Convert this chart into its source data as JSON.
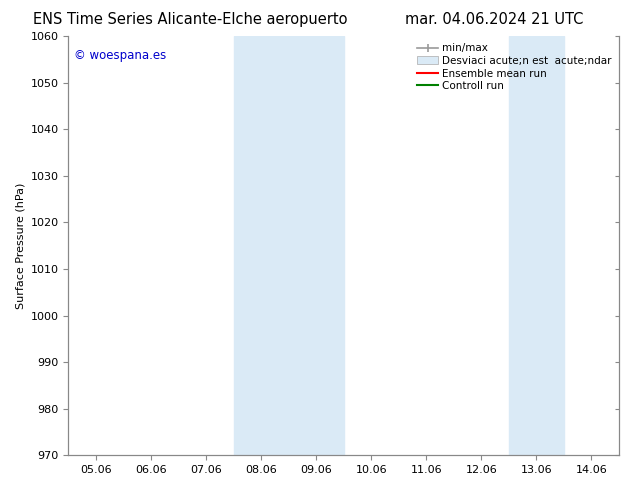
{
  "title_left": "ENS Time Series Alicante-Elche aeropuerto",
  "title_right": "mar. 04.06.2024 21 UTC",
  "ylabel": "Surface Pressure (hPa)",
  "ylim": [
    970,
    1060
  ],
  "yticks": [
    970,
    980,
    990,
    1000,
    1010,
    1020,
    1030,
    1040,
    1050,
    1060
  ],
  "xtick_positions": [
    0,
    1,
    2,
    3,
    4,
    5,
    6,
    7,
    8,
    9
  ],
  "xtick_labels": [
    "05.06",
    "06.06",
    "07.06",
    "08.06",
    "09.06",
    "10.06",
    "11.06",
    "12.06",
    "13.06",
    "14.06"
  ],
  "watermark": "© woespana.es",
  "watermark_color": "#0000cc",
  "shaded_regions": [
    {
      "xstart": 3,
      "xend": 4,
      "color": "#daeaf6"
    },
    {
      "xstart": 4,
      "xend": 5,
      "color": "#daeaf6"
    },
    {
      "xstart": 8,
      "xend": 9,
      "color": "#daeaf6"
    }
  ],
  "legend_labels": [
    "min/max",
    "Desviaci acute;n est  acute;ndar",
    "Ensemble mean run",
    "Controll run"
  ],
  "legend_colors_line": [
    "#999999",
    "#cccccc",
    "red",
    "green"
  ],
  "bg_color": "#ffffff",
  "plot_bg_color": "#ffffff",
  "spine_color": "#888888",
  "tick_color": "#333333",
  "tick_fontsize": 8,
  "title_fontsize": 10.5
}
